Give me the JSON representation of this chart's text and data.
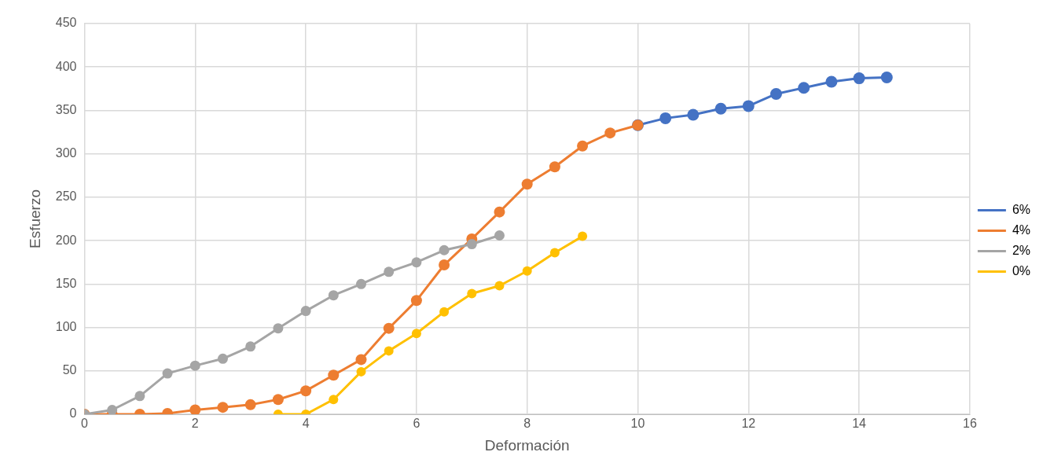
{
  "chart_data": {
    "type": "line",
    "xlabel": "Deformación",
    "ylabel": "Esfuerzo",
    "xlim": [
      0,
      16
    ],
    "xticks": [
      0,
      2,
      4,
      6,
      8,
      10,
      12,
      14,
      16
    ],
    "ylim": [
      0,
      450
    ],
    "yticks": [
      0,
      50,
      100,
      150,
      200,
      250,
      300,
      350,
      400,
      450
    ],
    "grid": true,
    "legend": "right",
    "marker": "circle",
    "series": [
      {
        "name": "6%",
        "color": "#4472c4",
        "x": [
          10,
          10.5,
          11,
          11.5,
          12,
          12.5,
          13,
          13.5,
          14,
          14.5
        ],
        "values": [
          333,
          341,
          345,
          352,
          355,
          369,
          376,
          383,
          387,
          388
        ]
      },
      {
        "name": "4%",
        "color": "#ed7d31",
        "x": [
          0,
          0.5,
          1,
          1.5,
          2,
          2.5,
          3,
          3.5,
          4,
          4.5,
          5,
          5.5,
          6,
          6.5,
          7,
          7.5,
          8,
          8.5,
          9,
          9.5,
          10
        ],
        "values": [
          0,
          0,
          0,
          1,
          5,
          8,
          11,
          17,
          27,
          45,
          63,
          99,
          131,
          172,
          202,
          233,
          265,
          285,
          309,
          324,
          333
        ]
      },
      {
        "name": "2%",
        "color": "#a5a5a5",
        "x": [
          0,
          0.5,
          1,
          1.5,
          2,
          2.5,
          3,
          3.5,
          4,
          4.5,
          5,
          5.5,
          6,
          6.5,
          7,
          7.5
        ],
        "values": [
          0,
          5,
          21,
          47,
          56,
          64,
          78,
          99,
          119,
          137,
          150,
          164,
          175,
          189,
          196,
          206
        ]
      },
      {
        "name": "0%",
        "color": "#ffc000",
        "x": [
          3.5,
          4,
          4.5,
          5,
          5.5,
          6,
          6.5,
          7,
          7.5,
          8,
          8.5,
          9
        ],
        "values": [
          0,
          0,
          17,
          49,
          73,
          93,
          118,
          139,
          148,
          165,
          186,
          205
        ]
      }
    ]
  }
}
